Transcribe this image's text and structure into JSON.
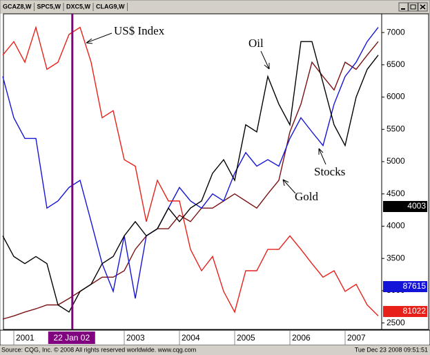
{
  "tabs": [
    "GCAZ8,W",
    "SPC5,W",
    "DXC5,W",
    "CLAG9,W"
  ],
  "chart_data": {
    "type": "line",
    "x": [
      2000.8,
      2001.0,
      2001.2,
      2001.4,
      2001.6,
      2001.8,
      2002.0,
      2002.2,
      2002.4,
      2002.6,
      2002.8,
      2003.0,
      2003.2,
      2003.4,
      2003.6,
      2003.8,
      2004.0,
      2004.2,
      2004.4,
      2004.6,
      2004.8,
      2005.0,
      2005.2,
      2005.4,
      2005.6,
      2005.8,
      2006.0,
      2006.2,
      2006.4,
      2006.6,
      2006.8,
      2007.0,
      2007.2,
      2007.4,
      2007.6
    ],
    "series": [
      {
        "name": "GCAZ8,W",
        "color": "#7a1012",
        "values": [
          2560,
          2610,
          2670,
          2720,
          2780,
          2780,
          2880,
          2990,
          3100,
          3210,
          3210,
          3310,
          3640,
          3850,
          3960,
          3960,
          4170,
          4070,
          4280,
          4280,
          4390,
          4500,
          4390,
          4280,
          4500,
          4710,
          5460,
          5890,
          6540,
          6320,
          6110,
          6540,
          6430,
          6650,
          6860
        ]
      },
      {
        "name": "SPC5,W",
        "color": "#1414d8",
        "values": [
          6320,
          5680,
          5360,
          5360,
          4280,
          4390,
          4600,
          4710,
          4070,
          3420,
          2990,
          3850,
          2880,
          3850,
          3960,
          4280,
          4600,
          4390,
          4280,
          4500,
          4390,
          4820,
          5140,
          4930,
          5030,
          4930,
          5360,
          5680,
          5460,
          5250,
          5890,
          6320,
          6540,
          6860,
          7080
        ]
      },
      {
        "name": "DXC5,W",
        "color": "#e8201a",
        "values": [
          6650,
          6860,
          6540,
          7080,
          6430,
          6540,
          6970,
          7080,
          6540,
          5680,
          5790,
          5030,
          4930,
          4070,
          4710,
          4390,
          4390,
          3640,
          3310,
          3530,
          2990,
          2670,
          3310,
          3310,
          3640,
          3640,
          3850,
          3640,
          3420,
          3210,
          3310,
          2990,
          3100,
          2780,
          2610
        ]
      },
      {
        "name": "CLAG9,W",
        "color": "#000000",
        "values": [
          3850,
          3530,
          3420,
          3530,
          3420,
          2780,
          2670,
          2990,
          3100,
          3420,
          3530,
          3850,
          4070,
          3850,
          3960,
          4280,
          4070,
          4280,
          4390,
          4820,
          5030,
          4710,
          5570,
          5460,
          6320,
          5890,
          5570,
          6860,
          6860,
          6220,
          5570,
          5250,
          6000,
          6430,
          6650
        ]
      }
    ],
    "xlim": [
      2000.8125,
      2007.6625
    ],
    "xticks": [
      2001,
      2003,
      2004,
      2005,
      2006,
      2007
    ],
    "cursor": {
      "value": 2002.06,
      "label": "22 Jan 02",
      "color": "#800080"
    },
    "ylim": [
      2400,
      7290
    ],
    "yticks": [
      2500,
      3000,
      3500,
      4000,
      4500,
      5000,
      5500,
      6000,
      6500,
      7000
    ],
    "annotations": [
      "US$ Index",
      "Oil",
      "Stocks",
      "Gold"
    ],
    "price_boxes": [
      {
        "label": "4003",
        "color": "#000000"
      },
      {
        "label": "87615",
        "color": "#1414d8"
      },
      {
        "label": "81022",
        "color": "#e8201a"
      }
    ]
  },
  "footer": {
    "source": "Source: CQG, Inc. © 2008 All rights reserved worldwide. www.cqg.com",
    "timestamp": "Tue Dec 23 2008 09:51:51"
  }
}
